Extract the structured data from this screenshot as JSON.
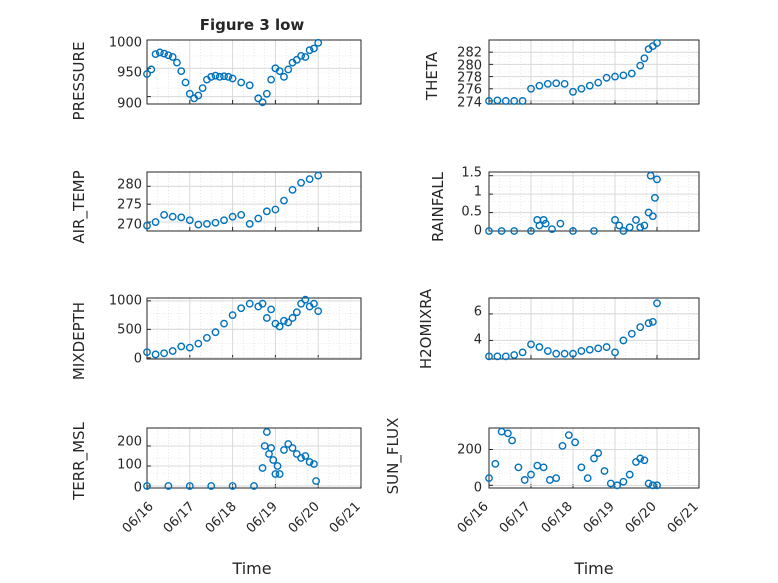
{
  "figure": {
    "title": "Figure 3 low",
    "x_axis_label": "Time"
  },
  "colors": {
    "series": "#0072BD",
    "axis": "#262626",
    "grid": "#d9d9d9"
  },
  "chart_data": [
    {
      "type": "scatter",
      "panel": "pressure",
      "title": "Figure 3 low",
      "ylabel": "PRESSURE",
      "xlabel": "",
      "xlim": [
        0,
        5
      ],
      "ylim": [
        887,
        1000
      ],
      "y_ticks": [
        900,
        950,
        1000
      ],
      "y_tick_labels": [
        "900",
        "950",
        "1000"
      ],
      "x_tick_labels": [],
      "grid": true,
      "x": [
        0,
        0.1,
        0.2,
        0.3,
        0.4,
        0.5,
        0.6,
        0.7,
        0.8,
        0.9,
        1.0,
        1.1,
        1.2,
        1.3,
        1.4,
        1.5,
        1.6,
        1.7,
        1.8,
        1.9,
        2.0,
        2.2,
        2.4,
        2.6,
        2.7,
        2.8,
        2.9,
        3.0,
        3.1,
        3.2,
        3.3,
        3.4,
        3.5,
        3.6,
        3.7,
        3.8,
        3.9,
        4.0
      ],
      "y": [
        940,
        948,
        975,
        978,
        976,
        973,
        970,
        960,
        945,
        925,
        905,
        897,
        902,
        915,
        930,
        935,
        937,
        935,
        936,
        935,
        932,
        925,
        920,
        897,
        890,
        905,
        930,
        950,
        945,
        935,
        948,
        960,
        965,
        972,
        970,
        982,
        985,
        995
      ]
    },
    {
      "type": "scatter",
      "panel": "theta",
      "ylabel": "THETA",
      "xlabel": "",
      "xlim": [
        0,
        5
      ],
      "ylim": [
        273.5,
        284
      ],
      "y_ticks": [
        274,
        276,
        278,
        280,
        282
      ],
      "y_tick_labels": [
        "274",
        "276",
        "278",
        "280",
        "282"
      ],
      "x_tick_labels": [],
      "grid": true,
      "x": [
        0,
        0.2,
        0.4,
        0.6,
        0.8,
        1.0,
        1.2,
        1.4,
        1.6,
        1.8,
        2.0,
        2.2,
        2.4,
        2.6,
        2.8,
        3.0,
        3.2,
        3.4,
        3.6,
        3.7,
        3.8,
        3.9,
        4.0
      ],
      "y": [
        274,
        274.1,
        274,
        274,
        274,
        276,
        276.5,
        276.8,
        276.9,
        276.8,
        275.5,
        276,
        276.5,
        277,
        277.8,
        278,
        278.2,
        278.5,
        279.8,
        281,
        282.5,
        283,
        283.5
      ]
    },
    {
      "type": "scatter",
      "panel": "air_temp",
      "ylabel": "AIR_TEMP",
      "xlabel": "",
      "xlim": [
        0,
        5
      ],
      "ylim": [
        267.5,
        284
      ],
      "y_ticks": [
        270,
        275,
        280
      ],
      "y_tick_labels": [
        "270",
        "275",
        "280"
      ],
      "x_tick_labels": [],
      "grid": true,
      "x": [
        0,
        0.2,
        0.4,
        0.6,
        0.8,
        1.0,
        1.2,
        1.4,
        1.6,
        1.8,
        2.0,
        2.2,
        2.4,
        2.6,
        2.8,
        3.0,
        3.2,
        3.4,
        3.6,
        3.8,
        4.0
      ],
      "y": [
        269,
        270,
        272,
        271.5,
        271.3,
        270.5,
        269.3,
        269.5,
        269.8,
        270.5,
        271.5,
        272,
        269.5,
        271,
        273,
        273.5,
        276,
        279,
        281,
        282,
        283
      ]
    },
    {
      "type": "scatter",
      "panel": "rainfall",
      "ylabel": "RAINFALL",
      "xlabel": "",
      "xlim": [
        0,
        5
      ],
      "ylim": [
        0,
        1.6
      ],
      "y_ticks": [
        0,
        0.5,
        1,
        1.5
      ],
      "y_tick_labels": [
        "0",
        "0.5",
        "1",
        "1.5"
      ],
      "x_tick_labels": [],
      "grid": true,
      "x": [
        0,
        0.3,
        0.6,
        1.0,
        1.15,
        1.2,
        1.3,
        1.35,
        1.5,
        1.7,
        2.0,
        2.5,
        3.0,
        3.1,
        3.2,
        3.35,
        3.5,
        3.6,
        3.7,
        3.8,
        3.85,
        3.9,
        3.95,
        4.0
      ],
      "y": [
        0,
        0,
        0,
        0,
        0.3,
        0.15,
        0.3,
        0.2,
        0.05,
        0.2,
        0,
        0,
        0.3,
        0.15,
        0,
        0.1,
        0.3,
        0.1,
        0.15,
        0.5,
        1.5,
        0.4,
        0.9,
        1.4
      ]
    },
    {
      "type": "scatter",
      "panel": "mixdepth",
      "ylabel": "MIXDEPTH",
      "xlabel": "",
      "xlim": [
        0,
        5
      ],
      "ylim": [
        -20,
        1050
      ],
      "y_ticks": [
        0,
        500,
        1000
      ],
      "y_tick_labels": [
        "0",
        "500",
        "1000"
      ],
      "x_tick_labels": [],
      "grid": true,
      "x": [
        0,
        0.2,
        0.4,
        0.6,
        0.8,
        1.0,
        1.2,
        1.4,
        1.6,
        1.8,
        2.0,
        2.2,
        2.4,
        2.6,
        2.7,
        2.8,
        2.9,
        3.0,
        3.1,
        3.2,
        3.3,
        3.4,
        3.5,
        3.6,
        3.7,
        3.8,
        3.9,
        4.0
      ],
      "y": [
        100,
        60,
        80,
        120,
        200,
        180,
        250,
        350,
        450,
        600,
        750,
        870,
        950,
        900,
        950,
        700,
        850,
        600,
        550,
        650,
        620,
        700,
        800,
        950,
        1020,
        900,
        950,
        820
      ]
    },
    {
      "type": "scatter",
      "panel": "h2omixra",
      "ylabel": "H2OMIXRA",
      "xlabel": "",
      "xlim": [
        0,
        5
      ],
      "ylim": [
        2.6,
        7.2
      ],
      "y_ticks": [
        4,
        6
      ],
      "y_tick_labels": [
        "4",
        "6"
      ],
      "x_tick_labels": [],
      "grid": true,
      "x": [
        0,
        0.2,
        0.4,
        0.6,
        0.8,
        1.0,
        1.2,
        1.4,
        1.6,
        1.8,
        2.0,
        2.2,
        2.4,
        2.6,
        2.8,
        3.0,
        3.2,
        3.4,
        3.6,
        3.8,
        3.9,
        4.0
      ],
      "y": [
        2.8,
        2.8,
        2.8,
        2.9,
        3.1,
        3.7,
        3.5,
        3.2,
        3.0,
        3.0,
        3.0,
        3.2,
        3.3,
        3.4,
        3.5,
        3.1,
        4.0,
        4.5,
        5.0,
        5.3,
        5.4,
        6.8
      ]
    },
    {
      "type": "scatter",
      "panel": "terr_msl",
      "ylabel": "TERR_MSL",
      "xlabel": "Time",
      "xlim": [
        0,
        5
      ],
      "ylim": [
        -10,
        290
      ],
      "y_ticks": [
        0,
        100,
        200
      ],
      "y_tick_labels": [
        "0",
        "100",
        "200"
      ],
      "x_tick_labels": [
        "06/16",
        "06/17",
        "06/18",
        "06/19",
        "06/20",
        "06/21"
      ],
      "grid": true,
      "x": [
        0,
        0.5,
        1.0,
        1.5,
        2.0,
        2.5,
        2.7,
        2.75,
        2.8,
        2.85,
        2.9,
        2.95,
        3.0,
        3.05,
        3.1,
        3.2,
        3.3,
        3.4,
        3.5,
        3.6,
        3.7,
        3.8,
        3.9,
        3.95
      ],
      "y": [
        0,
        0,
        0,
        0,
        0,
        0,
        90,
        200,
        270,
        160,
        190,
        130,
        60,
        100,
        60,
        180,
        210,
        190,
        160,
        140,
        150,
        120,
        110,
        25
      ]
    },
    {
      "type": "scatter",
      "panel": "sun_flux",
      "ylabel": "SUN_FLUX",
      "xlabel": "Time",
      "xlim": [
        0,
        5
      ],
      "ylim": [
        -15,
        320
      ],
      "y_ticks": [
        0,
        200
      ],
      "y_tick_labels": [
        "0",
        "200"
      ],
      "x_tick_labels": [
        "06/16",
        "06/17",
        "06/18",
        "06/19",
        "06/20",
        "06/21"
      ],
      "grid": true,
      "x": [
        0,
        0.15,
        0.3,
        0.45,
        0.55,
        0.7,
        0.85,
        1.0,
        1.15,
        1.3,
        1.45,
        1.6,
        1.75,
        1.9,
        2.05,
        2.2,
        2.35,
        2.5,
        2.6,
        2.75,
        2.9,
        3.05,
        3.2,
        3.35,
        3.5,
        3.6,
        3.7,
        3.8,
        3.9,
        4.0
      ],
      "y": [
        40,
        120,
        300,
        290,
        250,
        100,
        30,
        60,
        110,
        100,
        30,
        40,
        220,
        280,
        240,
        100,
        40,
        150,
        180,
        80,
        10,
        0,
        20,
        60,
        130,
        150,
        140,
        10,
        0,
        0
      ]
    }
  ]
}
